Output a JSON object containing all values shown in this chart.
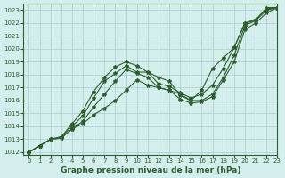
{
  "xlabel": "Graphe pression niveau de la mer (hPa)",
  "bg_color": "#d4eeed",
  "grid_color": "#a8cccc",
  "line_color": "#2d5e2d",
  "marker": "*",
  "xlim": [
    -0.5,
    23
  ],
  "ylim": [
    1011.8,
    1023.5
  ],
  "xticks": [
    0,
    1,
    2,
    3,
    4,
    5,
    6,
    7,
    8,
    9,
    10,
    11,
    12,
    13,
    14,
    15,
    16,
    17,
    18,
    19,
    20,
    21,
    22,
    23
  ],
  "yticks": [
    1012,
    1013,
    1014,
    1015,
    1016,
    1017,
    1018,
    1019,
    1020,
    1021,
    1022,
    1023
  ],
  "lines": [
    [
      1012.0,
      1012.5,
      1013.0,
      1013.1,
      1013.8,
      1014.2,
      1014.9,
      1015.4,
      1016.0,
      1016.8,
      1017.6,
      1017.2,
      1017.0,
      1016.8,
      1016.1,
      1015.8,
      1015.9,
      1016.3,
      1017.6,
      1019.0,
      1021.5,
      1022.0,
      1022.8,
      1023.2
    ],
    [
      1012.0,
      1012.5,
      1013.0,
      1013.1,
      1013.8,
      1014.4,
      1015.5,
      1016.5,
      1017.5,
      1018.4,
      1018.1,
      1017.8,
      1017.0,
      1016.8,
      1016.5,
      1016.0,
      1016.0,
      1016.5,
      1017.8,
      1019.5,
      1021.8,
      1022.2,
      1023.0,
      1023.2
    ],
    [
      1012.0,
      1012.5,
      1013.0,
      1013.2,
      1014.0,
      1014.8,
      1016.2,
      1017.5,
      1018.1,
      1018.7,
      1018.2,
      1018.2,
      1017.3,
      1017.1,
      1016.6,
      1016.2,
      1016.5,
      1017.2,
      1018.5,
      1020.1,
      1022.0,
      1022.3,
      1023.1,
      1023.2
    ],
    [
      1012.0,
      1012.5,
      1013.0,
      1013.2,
      1014.2,
      1015.2,
      1016.7,
      1017.8,
      1018.6,
      1019.0,
      1018.7,
      1018.2,
      1017.8,
      1017.5,
      1016.4,
      1016.0,
      1016.8,
      1018.5,
      1019.3,
      1020.1,
      1022.0,
      1022.2,
      1023.2,
      1023.2
    ]
  ],
  "xlabel_fontsize": 6.5,
  "tick_fontsize": 5,
  "linewidth": 0.8,
  "markersize": 3.0
}
